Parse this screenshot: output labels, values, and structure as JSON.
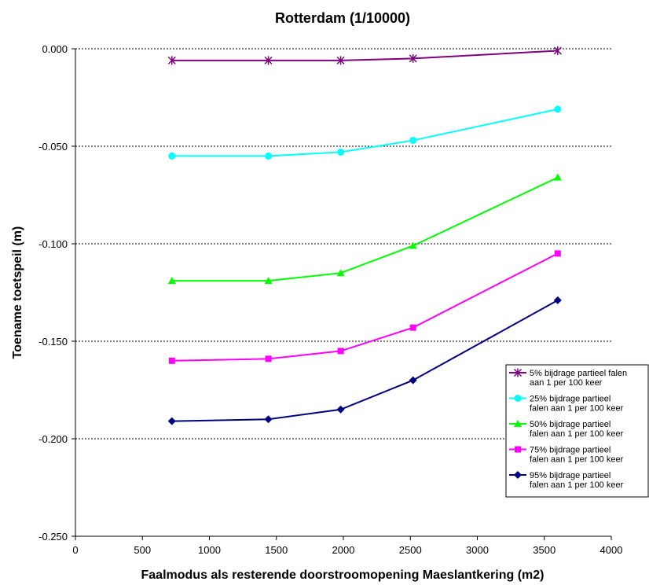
{
  "chart_data": {
    "type": "line",
    "title": "Rotterdam (1/10000)",
    "xlabel": "Faalmodus als resterende doorstroomopening Maeslantkering (m2)",
    "ylabel": "Toename toetspeil (m)",
    "xlim": [
      0,
      4000
    ],
    "ylim": [
      -0.25,
      0.0
    ],
    "xticks": [
      0,
      500,
      1000,
      1500,
      2000,
      2500,
      3000,
      3500,
      4000
    ],
    "xtick_labels": [
      "0",
      "500",
      "1000",
      "1500",
      "2000",
      "2500",
      "3000",
      "3500",
      "4000"
    ],
    "yticks": [
      0.0,
      -0.05,
      -0.1,
      -0.15,
      -0.2,
      -0.25
    ],
    "ytick_labels": [
      "0.000",
      "-0.050",
      "-0.100",
      "-0.150",
      "-0.200",
      "-0.250"
    ],
    "grid": "horizontal-dotted",
    "legend_position": "right",
    "x": [
      720,
      1440,
      1980,
      2520,
      3600
    ],
    "series": [
      {
        "name": "5% bijdrage partieel falen aan 1 per 100 keer",
        "legend_lines": [
          "5% bijdrage partieel falen",
          "aan 1 per 100 keer"
        ],
        "color": "#800080",
        "marker": "asterisk",
        "values": [
          -0.006,
          -0.006,
          -0.006,
          -0.005,
          -0.001
        ]
      },
      {
        "name": "25% bijdrage partieel falen aan 1 per 100 keer",
        "legend_lines": [
          "25% bijdrage partieel",
          "falen aan 1 per 100 keer"
        ],
        "color": "#00ffff",
        "marker": "circle",
        "values": [
          -0.055,
          -0.055,
          -0.053,
          -0.047,
          -0.031
        ]
      },
      {
        "name": "50% bijdrage partieel falen aan 1 per 100 keer",
        "legend_lines": [
          "50% bijdrage partieel",
          "falen aan 1 per 100 keer"
        ],
        "color": "#00ff00",
        "marker": "triangle",
        "values": [
          -0.119,
          -0.119,
          -0.115,
          -0.101,
          -0.066
        ]
      },
      {
        "name": "75% bijdrage partieel falen aan 1 per 100 keer",
        "legend_lines": [
          "75% bijdrage partieel",
          "falen aan 1 per 100 keer"
        ],
        "color": "#ff00ff",
        "marker": "square",
        "values": [
          -0.16,
          -0.159,
          -0.155,
          -0.143,
          -0.105
        ]
      },
      {
        "name": "95% bijdrage partieel falen aan 1 per 100 keer",
        "legend_lines": [
          "95% bijdrage partieel",
          "falen aan 1 per 100 keer"
        ],
        "color": "#000080",
        "marker": "diamond",
        "values": [
          -0.191,
          -0.19,
          -0.185,
          -0.17,
          -0.129
        ]
      }
    ]
  }
}
